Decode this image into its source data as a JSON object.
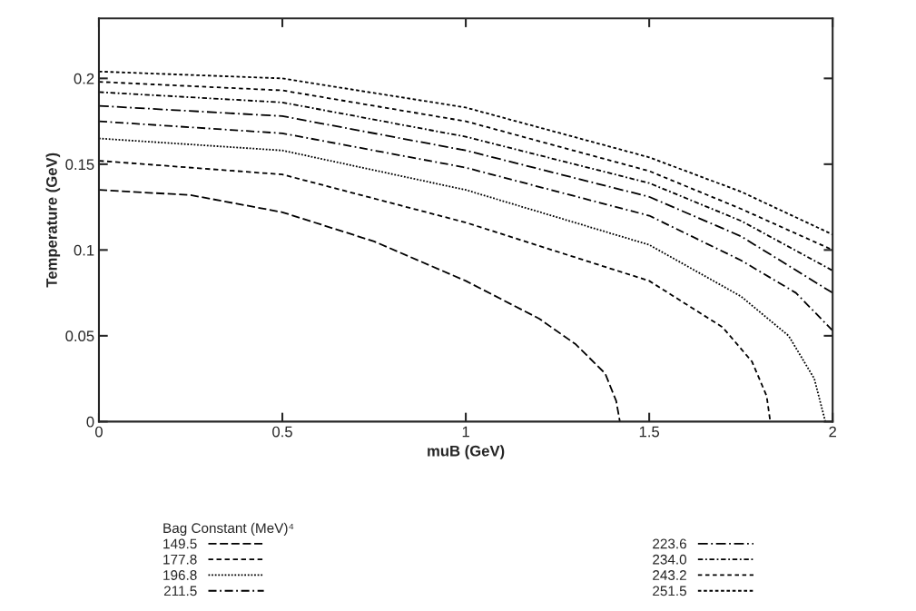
{
  "chart_data": {
    "type": "line",
    "xlabel": "muB (GeV)",
    "ylabel": "Temperature (GeV)",
    "legend_title": "Bag Constant (MeV)⁴",
    "legend": "bottom",
    "xlim": [
      0,
      2
    ],
    "ylim": [
      0,
      0.235
    ],
    "xticks": [
      0,
      0.5,
      1,
      1.5,
      2
    ],
    "yticks": [
      0,
      0.05,
      0.1,
      0.15,
      0.2
    ],
    "grid": false,
    "marker": "none",
    "series": [
      {
        "name": "149.5",
        "color": "#000000",
        "line_style": "dashed",
        "x": [
          0,
          0.25,
          0.5,
          0.75,
          1.0,
          1.2,
          1.3,
          1.38,
          1.41,
          1.42
        ],
        "values": [
          0.135,
          0.132,
          0.122,
          0.105,
          0.082,
          0.06,
          0.045,
          0.028,
          0.012,
          0
        ]
      },
      {
        "name": "177.8",
        "color": "#000000",
        "line_style": "dashed",
        "x": [
          0,
          0.5,
          1,
          1.5,
          1.7,
          1.78,
          1.82,
          1.83
        ],
        "values": [
          0.152,
          0.144,
          0.116,
          0.082,
          0.055,
          0.035,
          0.015,
          0
        ]
      },
      {
        "name": "196.8",
        "color": "#000000",
        "line_style": "dotted",
        "x": [
          0,
          0.5,
          1,
          1.5,
          1.75,
          1.88,
          1.95,
          1.98
        ],
        "values": [
          0.165,
          0.158,
          0.135,
          0.103,
          0.073,
          0.05,
          0.025,
          0
        ]
      },
      {
        "name": "211.5",
        "color": "#000000",
        "line_style": "dashed",
        "x": [
          0,
          0.5,
          1,
          1.5,
          1.75,
          1.9,
          2
        ],
        "values": [
          0.175,
          0.168,
          0.148,
          0.12,
          0.094,
          0.075,
          0.053
        ]
      },
      {
        "name": "223.6",
        "color": "#000000",
        "line_style": "dashed",
        "x": [
          0,
          0.5,
          1,
          1.5,
          1.75,
          2
        ],
        "values": [
          0.184,
          0.178,
          0.158,
          0.131,
          0.108,
          0.075
        ]
      },
      {
        "name": "234.0",
        "color": "#000000",
        "line_style": "dashed",
        "x": [
          0,
          0.5,
          1,
          1.5,
          1.75,
          2
        ],
        "values": [
          0.192,
          0.186,
          0.166,
          0.139,
          0.117,
          0.088
        ]
      },
      {
        "name": "243.2",
        "color": "#000000",
        "line_style": "dashed",
        "x": [
          0,
          0.5,
          1,
          1.5,
          1.75,
          2
        ],
        "values": [
          0.198,
          0.193,
          0.175,
          0.146,
          0.124,
          0.1
        ]
      },
      {
        "name": "251.5",
        "color": "#000000",
        "line_style": "dotted",
        "x": [
          0,
          0.5,
          1,
          1.5,
          1.75,
          2
        ],
        "values": [
          0.204,
          0.2,
          0.183,
          0.154,
          0.134,
          0.109
        ]
      }
    ]
  }
}
